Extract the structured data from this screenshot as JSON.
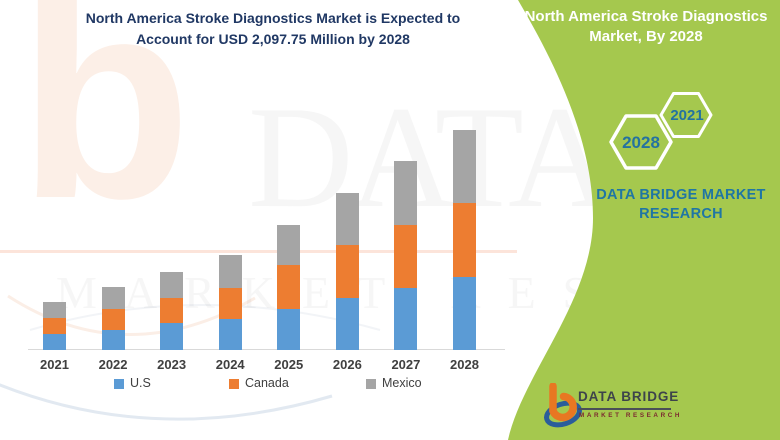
{
  "title": {
    "line1": "North America Stroke Diagnostics Market is Expected to",
    "line2": "Account for USD 2,097.75 Million by 2028"
  },
  "side_panel": {
    "heading_line1": "North America Stroke Diagnostics",
    "heading_line2": "Market, By 2028",
    "hexagons": [
      {
        "label": "2028"
      },
      {
        "label": "2021"
      }
    ],
    "brand_line1": "DATA BRIDGE MARKET",
    "brand_line2": "RESEARCH",
    "background_color": "#a5c84e",
    "heading_color": "#ffffff",
    "brand_color": "#1f76a4"
  },
  "watermark": {
    "letter": "b",
    "line1": "DATA BRIDGE",
    "line2": "MARKET RESEARCH"
  },
  "footer_logo": {
    "brand": "DATA BRIDGE",
    "tagline": "MARKET RESEARCH"
  },
  "chart_data": {
    "type": "stacked-bar",
    "title": "North America Stroke Diagnostics Market is Expected to Account for USD 2,097.75 Million by 2028",
    "unit": "USD Million",
    "categories": [
      "2021",
      "2022",
      "2023",
      "2024",
      "2025",
      "2026",
      "2027",
      "2028"
    ],
    "series": [
      {
        "name": "U.S",
        "color": "#5b9bd5",
        "values": [
          150,
          194,
          255,
          296,
          388,
          499,
          594,
          699
        ]
      },
      {
        "name": "Canada",
        "color": "#ed7d31",
        "values": [
          158,
          195,
          244,
          298,
          420,
          500,
          598,
          700
        ]
      },
      {
        "name": "Mexico",
        "color": "#a5a5a5",
        "values": [
          150,
          210,
          248,
          312,
          381,
          502,
          607,
          698.75
        ]
      }
    ],
    "totals": [
      458,
      599,
      747,
      906,
      1189,
      1501,
      1799,
      2097.75
    ],
    "ylim": [
      0,
      2200
    ],
    "grid": false,
    "y_axis_visible": false,
    "legend_position": "bottom"
  }
}
